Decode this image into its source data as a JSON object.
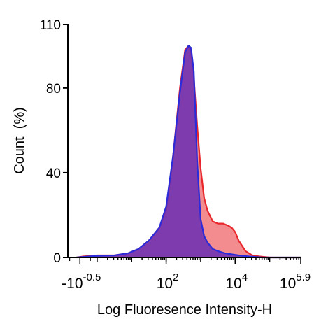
{
  "chart_data": {
    "type": "area",
    "title": "",
    "xlabel": "Log Fluoresence Intensity-H",
    "ylabel": "Count  (%)",
    "ylim": [
      0,
      110
    ],
    "x_scale": "log",
    "x_ticks": [
      {
        "base": "-10",
        "exp": "-0.5",
        "value": -0.5
      },
      {
        "base": "10",
        "exp": "2",
        "value": 2
      },
      {
        "base": "10",
        "exp": "4",
        "value": 4
      },
      {
        "base": "10",
        "exp": "5.9",
        "value": 5.9
      }
    ],
    "y_ticks": [
      {
        "label": "0",
        "value": 0
      },
      {
        "label": "40",
        "value": 40
      },
      {
        "label": "80",
        "value": 80
      },
      {
        "label": "110",
        "value": 110
      }
    ],
    "grid": false,
    "legend": "none",
    "series": [
      {
        "color": "#e8262b",
        "fill": "#f0787b",
        "x": [
          -0.6,
          -0.4,
          0.0,
          0.5,
          0.9,
          1.2,
          1.5,
          1.8,
          2.0,
          2.2,
          2.4,
          2.55,
          2.65,
          2.72,
          2.8,
          2.9,
          3.0,
          3.1,
          3.2,
          3.35,
          3.5,
          3.65,
          3.8,
          3.9,
          4.0,
          4.1,
          4.3,
          4.5,
          4.7,
          5.0,
          5.9
        ],
        "values": [
          0,
          0.5,
          1,
          1,
          2,
          4,
          8,
          14,
          22,
          48,
          80,
          98,
          100,
          97,
          85,
          62,
          42,
          28,
          22,
          17,
          16,
          16,
          15,
          14,
          12,
          8,
          3,
          1,
          0.5,
          0,
          0
        ]
      },
      {
        "color": "#2b2bd9",
        "fill": "#7032b0",
        "x": [
          -0.6,
          -0.4,
          0.0,
          0.5,
          0.9,
          1.2,
          1.5,
          1.8,
          2.0,
          2.2,
          2.4,
          2.55,
          2.65,
          2.72,
          2.8,
          2.9,
          3.0,
          3.1,
          3.2,
          3.35,
          3.5,
          3.7,
          3.9,
          4.1,
          4.4,
          4.8,
          5.9
        ],
        "values": [
          0,
          0.3,
          0.8,
          1,
          2,
          4,
          8,
          14,
          24,
          48,
          78,
          97,
          100,
          99,
          88,
          45,
          18,
          10,
          7,
          4,
          3,
          2,
          1.5,
          1,
          0.5,
          0,
          0
        ]
      }
    ]
  }
}
